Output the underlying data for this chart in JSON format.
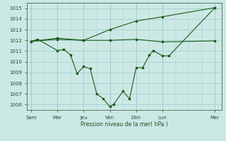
{
  "background_color": "#cce8e5",
  "grid_color": "#99ccca",
  "line_color": "#1a5c1a",
  "marker_color": "#1a5c1a",
  "xtick_labels": [
    "Sam",
    "Mar",
    "Jeu",
    "Ven",
    "Dim",
    "Lun",
    "Mer"
  ],
  "xtick_positions": [
    0,
    2,
    4,
    6,
    8,
    10,
    14
  ],
  "xlabel_text": "Pression niveau de la mer( hPa )",
  "ylim": [
    1005.5,
    1015.5
  ],
  "yticks": [
    1006,
    1007,
    1008,
    1009,
    1010,
    1011,
    1012,
    1013,
    1014,
    1015
  ],
  "line1_x": [
    0,
    2,
    4,
    6,
    8,
    10,
    14
  ],
  "line1_y": [
    1011.9,
    1012.2,
    1012.0,
    1012.0,
    1012.1,
    1011.85,
    1011.95
  ],
  "line2_x": [
    0,
    2,
    4,
    6,
    8,
    10,
    14
  ],
  "line2_y": [
    1011.9,
    1012.1,
    1012.0,
    1013.0,
    1013.8,
    1014.2,
    1015.05
  ],
  "line3_x": [
    0,
    0.5,
    2,
    2.5,
    3.0,
    3.5,
    4,
    4.5,
    5.0,
    5.5,
    6,
    6.3,
    7,
    7.5,
    8,
    8.5,
    9,
    9.3,
    10,
    10.5,
    14
  ],
  "line3_y": [
    1011.9,
    1012.1,
    1011.05,
    1011.15,
    1010.65,
    1008.9,
    1009.55,
    1009.35,
    1007.0,
    1006.55,
    1005.8,
    1006.05,
    1007.25,
    1006.55,
    1009.45,
    1009.45,
    1010.6,
    1011.05,
    1010.55,
    1010.55,
    1015.05
  ]
}
